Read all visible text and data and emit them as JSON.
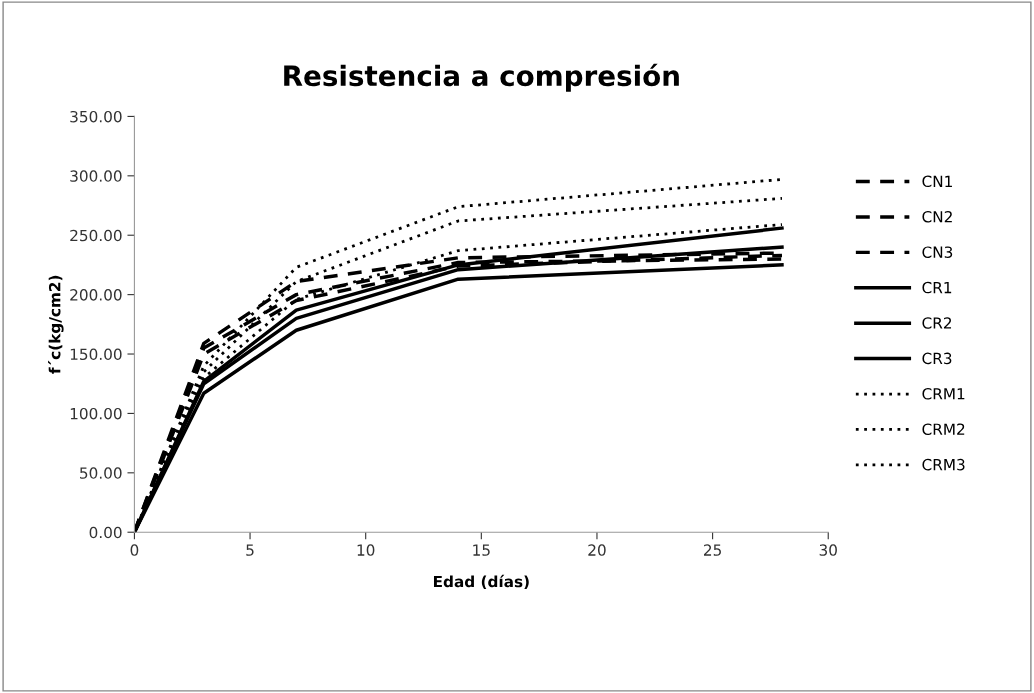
{
  "chart_data": {
    "type": "line",
    "title": "Resistencia a compresión",
    "xlabel": "Edad (días)",
    "ylabel": "f´c(kg/cm2)",
    "x": [
      0,
      3,
      7,
      14,
      28
    ],
    "series": [
      {
        "name": "CN1",
        "color": "#000000",
        "line_style": "dashed",
        "values": [
          0,
          159,
          211,
          231,
          235
        ]
      },
      {
        "name": "CN2",
        "color": "#000000",
        "line_style": "dashed",
        "values": [
          0,
          155,
          200,
          227,
          230
        ]
      },
      {
        "name": "CN3",
        "color": "#000000",
        "line_style": "dashed",
        "values": [
          0,
          150,
          195,
          224,
          233
        ]
      },
      {
        "name": "CR1",
        "color": "#000000",
        "line_style": "solid",
        "values": [
          0,
          127,
          187,
          225,
          256
        ]
      },
      {
        "name": "CR2",
        "color": "#000000",
        "line_style": "solid",
        "values": [
          0,
          125,
          180,
          221,
          240
        ]
      },
      {
        "name": "CR3",
        "color": "#000000",
        "line_style": "solid",
        "values": [
          0,
          117,
          170,
          213,
          225
        ]
      },
      {
        "name": "CRM1",
        "color": "#000000",
        "line_style": "dotted",
        "values": [
          0,
          140,
          223,
          274,
          297
        ]
      },
      {
        "name": "CRM2",
        "color": "#000000",
        "line_style": "dotted",
        "values": [
          0,
          135,
          211,
          262,
          281
        ]
      },
      {
        "name": "CRM3",
        "color": "#000000",
        "line_style": "dotted",
        "values": [
          0,
          130,
          196,
          237,
          259
        ]
      }
    ],
    "xlim": [
      0,
      30
    ],
    "xticks": [
      0,
      5,
      10,
      15,
      20,
      25,
      30
    ],
    "ylim": [
      0,
      350
    ],
    "yticks": [
      {
        "value": 0,
        "label": "0.00"
      },
      {
        "value": 50,
        "label": "50.00"
      },
      {
        "value": 100,
        "label": "100.00"
      },
      {
        "value": 150,
        "label": "150.00"
      },
      {
        "value": 200,
        "label": "200.00"
      },
      {
        "value": 250,
        "label": "250.00"
      },
      {
        "value": 300,
        "label": "300.00"
      },
      {
        "value": 350,
        "label": "350.00"
      }
    ],
    "grid": false,
    "legend": "right",
    "marker": "none"
  }
}
